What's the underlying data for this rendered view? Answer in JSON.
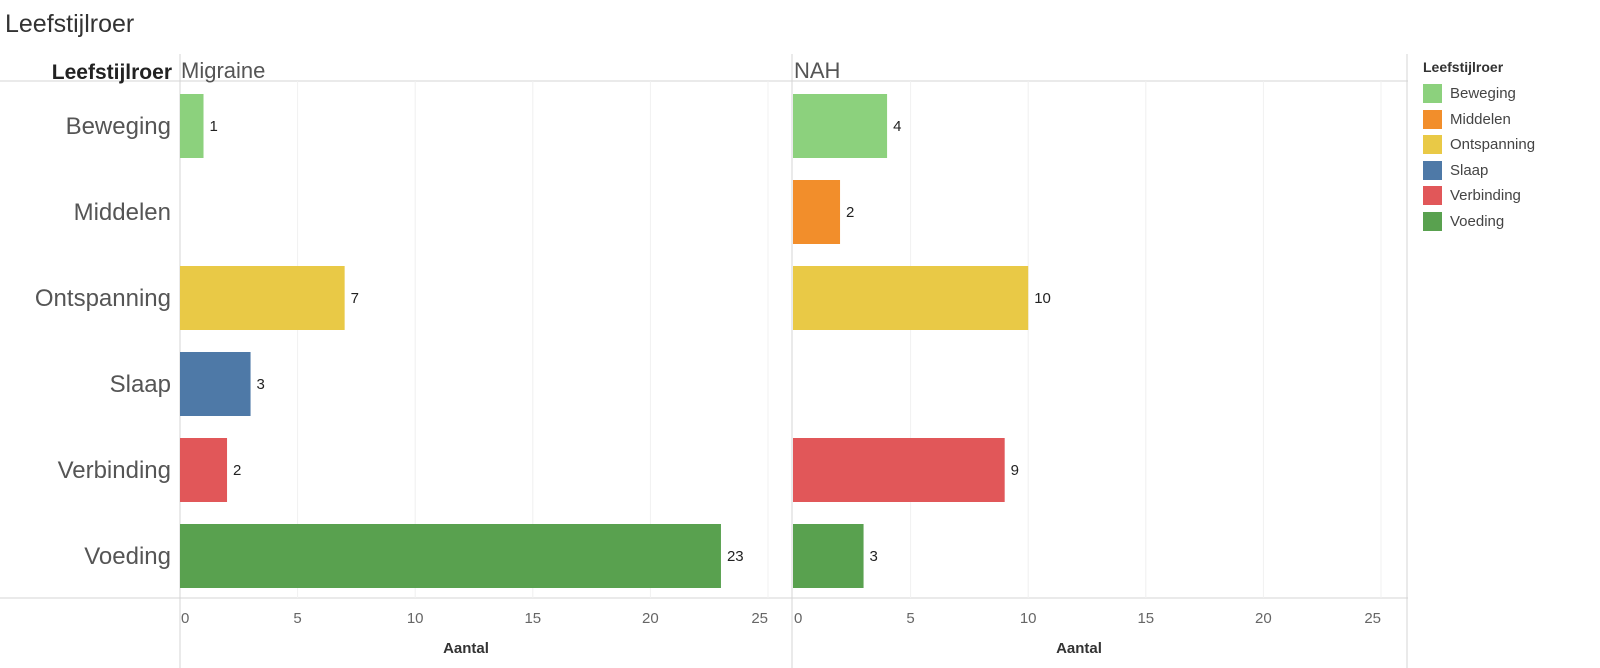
{
  "title": "Leefstijlroer",
  "row_header": "Leefstijlroer",
  "legend": {
    "title": "Leefstijlroer",
    "items": [
      {
        "label": "Beweging",
        "color": "#8cd17d"
      },
      {
        "label": "Middelen",
        "color": "#f28e2b"
      },
      {
        "label": "Ontspanning",
        "color": "#e9c946"
      },
      {
        "label": "Slaap",
        "color": "#4e79a7"
      },
      {
        "label": "Verbinding",
        "color": "#e15759"
      },
      {
        "label": "Voeding",
        "color": "#59a14f"
      }
    ]
  },
  "chart_data": {
    "type": "bar",
    "orientation": "horizontal",
    "categories": [
      "Beweging",
      "Middelen",
      "Ontspanning",
      "Slaap",
      "Verbinding",
      "Voeding"
    ],
    "panels": [
      {
        "name": "Migraine",
        "values": [
          1,
          null,
          7,
          3,
          2,
          23
        ]
      },
      {
        "name": "NAH",
        "values": [
          4,
          2,
          10,
          null,
          9,
          3
        ]
      }
    ],
    "xlabel": "Aantal",
    "xlim": [
      0,
      25
    ],
    "xticks": [
      0,
      5,
      10,
      15,
      20,
      25
    ],
    "grid": true,
    "legend_position": "right"
  }
}
